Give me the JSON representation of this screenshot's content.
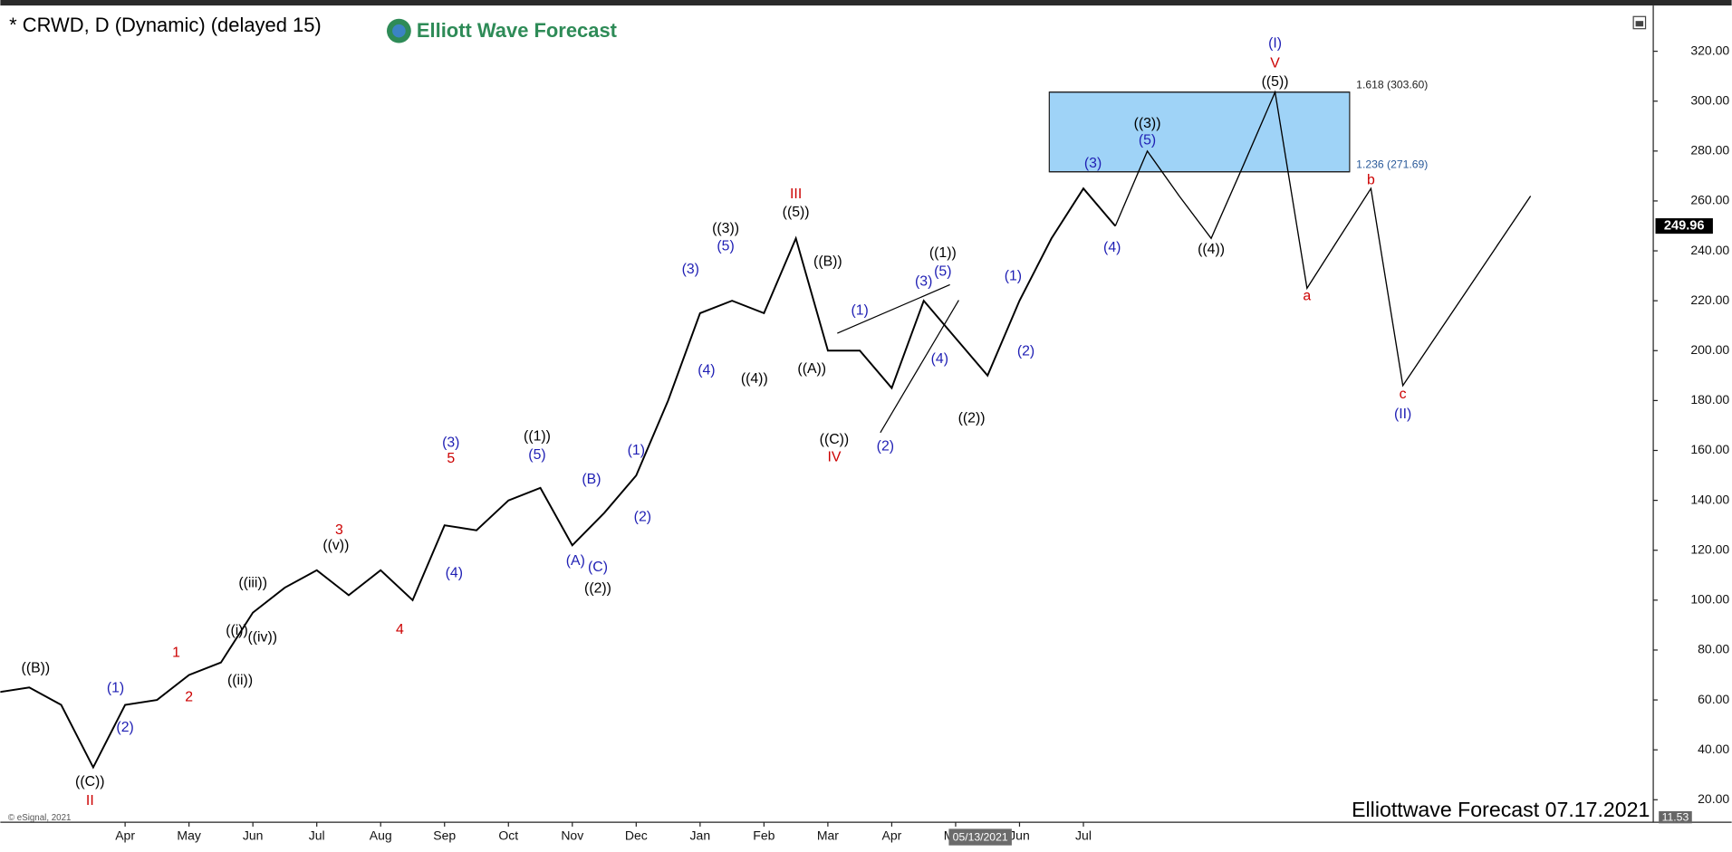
{
  "header": {
    "title": "* CRWD, D (Dynamic) (delayed 15)",
    "logo": "Elliott Wave Forecast"
  },
  "chart_data": {
    "type": "line",
    "categories": [
      null,
      null,
      null,
      null,
      "Apr",
      null,
      "May",
      null,
      "Jun",
      null,
      "Jul",
      null,
      "Aug",
      null,
      "Sep",
      null,
      "Oct",
      null,
      "Nov",
      null,
      "Dec",
      null,
      "Jan",
      null,
      "Feb",
      null,
      "Mar",
      null,
      "Apr",
      null,
      "May",
      null,
      "Jun",
      null,
      "Jul",
      null,
      null,
      null,
      null,
      null,
      null,
      null,
      null,
      null,
      null,
      null,
      null,
      null,
      null
    ],
    "series": [
      {
        "color": "#000000",
        "values": [
          63,
          65,
          58,
          33,
          58,
          60,
          70,
          75,
          95,
          105,
          112,
          102,
          112,
          100,
          130,
          128,
          140,
          145,
          122,
          135,
          150,
          180,
          215,
          220,
          215,
          245,
          200,
          200,
          185,
          220,
          205,
          190,
          220,
          245,
          265,
          249.96,
          null,
          null,
          null,
          null,
          null,
          null,
          null,
          null,
          null,
          null,
          null,
          null,
          null
        ]
      },
      {
        "color": "#000000",
        "values": [
          null,
          null,
          null,
          null,
          null,
          null,
          null,
          null,
          null,
          null,
          null,
          null,
          null,
          null,
          null,
          null,
          null,
          null,
          null,
          null,
          null,
          null,
          null,
          null,
          null,
          null,
          null,
          null,
          null,
          null,
          null,
          null,
          null,
          null,
          null,
          249.96,
          280,
          262,
          245,
          274,
          303.6,
          225,
          245,
          265,
          186,
          205,
          224,
          243,
          262
        ]
      }
    ],
    "ylim": [
      11,
      337
    ],
    "yticks": [
      {
        "value": 20,
        "label": "20.00"
      },
      {
        "value": 40,
        "label": "40.00"
      },
      {
        "value": 60,
        "label": "60.00"
      },
      {
        "value": 80,
        "label": "80.00"
      },
      {
        "value": 100,
        "label": "100.00"
      },
      {
        "value": 120,
        "label": "120.00"
      },
      {
        "value": 140,
        "label": "140.00"
      },
      {
        "value": 160,
        "label": "160.00"
      },
      {
        "value": 180,
        "label": "180.00"
      },
      {
        "value": 200,
        "label": "200.00"
      },
      {
        "value": 220,
        "label": "220.00"
      },
      {
        "value": 240,
        "label": "240.00"
      },
      {
        "value": 260,
        "label": "260.00"
      },
      {
        "value": 280,
        "label": "280.00"
      },
      {
        "value": 300,
        "label": "300.00"
      },
      {
        "value": 320,
        "label": "320.00"
      }
    ],
    "last_price": 249.96,
    "crosshair_label": "05/13/2021",
    "fib_zone": {
      "color": "#9fd3f7",
      "values": [
        303.6,
        271.69
      ],
      "labels": [
        "1.618 (303.60)",
        "1.236 (271.69)"
      ]
    },
    "annotations": [
      {
        "text": "((B))",
        "x": 1.2,
        "y": 72.7,
        "color": "#000000"
      },
      {
        "text": "((C))",
        "x": 2.9,
        "y": 27,
        "color": "#000000"
      },
      {
        "text": "II",
        "x": 2.9,
        "y": 19.5,
        "color": "#cc0000"
      },
      {
        "text": "(1)",
        "x": 3.7,
        "y": 64.7,
        "color": "#1f1fb4"
      },
      {
        "text": "(2)",
        "x": 4,
        "y": 48.8,
        "color": "#1f1fb4"
      },
      {
        "text": "1",
        "x": 5.6,
        "y": 78.8,
        "color": "#cc0000"
      },
      {
        "text": "2",
        "x": 6,
        "y": 61,
        "color": "#cc0000"
      },
      {
        "text": "((i))",
        "x": 7.5,
        "y": 87.7,
        "color": "#000000"
      },
      {
        "text": "((ii))",
        "x": 7.6,
        "y": 67.8,
        "color": "#000000"
      },
      {
        "text": "((iii))",
        "x": 8,
        "y": 106.7,
        "color": "#000000"
      },
      {
        "text": "((iv))",
        "x": 8.3,
        "y": 85,
        "color": "#000000"
      },
      {
        "text": "3",
        "x": 10.7,
        "y": 128,
        "color": "#cc0000"
      },
      {
        "text": "((v))",
        "x": 10.6,
        "y": 121.8,
        "color": "#000000"
      },
      {
        "text": "4",
        "x": 12.6,
        "y": 88,
        "color": "#cc0000"
      },
      {
        "text": "(3)",
        "x": 14.2,
        "y": 163,
        "color": "#1f1fb4"
      },
      {
        "text": "5",
        "x": 14.2,
        "y": 156.7,
        "color": "#cc0000"
      },
      {
        "text": "(4)",
        "x": 14.3,
        "y": 110.7,
        "color": "#1f1fb4"
      },
      {
        "text": "((1))",
        "x": 16.9,
        "y": 165.6,
        "color": "#000000"
      },
      {
        "text": "(5)",
        "x": 16.9,
        "y": 158,
        "color": "#1f1fb4"
      },
      {
        "text": "(A)",
        "x": 18.1,
        "y": 115.6,
        "color": "#1f1fb4"
      },
      {
        "text": "(B)",
        "x": 18.6,
        "y": 148.3,
        "color": "#1f1fb4"
      },
      {
        "text": "(C)",
        "x": 18.8,
        "y": 113,
        "color": "#1f1fb4"
      },
      {
        "text": "((2))",
        "x": 18.8,
        "y": 104.5,
        "color": "#000000"
      },
      {
        "text": "(1)",
        "x": 20,
        "y": 159.8,
        "color": "#1f1fb4"
      },
      {
        "text": "(2)",
        "x": 20.2,
        "y": 133.3,
        "color": "#1f1fb4"
      },
      {
        "text": "(3)",
        "x": 21.7,
        "y": 232.4,
        "color": "#1f1fb4"
      },
      {
        "text": "(4)",
        "x": 22.2,
        "y": 192,
        "color": "#1f1fb4"
      },
      {
        "text": "((3))",
        "x": 22.8,
        "y": 248.8,
        "color": "#000000"
      },
      {
        "text": "(5)",
        "x": 22.8,
        "y": 241.7,
        "color": "#1f1fb4"
      },
      {
        "text": "((4))",
        "x": 23.7,
        "y": 188.6,
        "color": "#000000"
      },
      {
        "text": "III",
        "x": 25,
        "y": 262.5,
        "color": "#cc0000"
      },
      {
        "text": "((5))",
        "x": 25,
        "y": 255.4,
        "color": "#000000"
      },
      {
        "text": "((B))",
        "x": 26,
        "y": 235.5,
        "color": "#000000"
      },
      {
        "text": "((A))",
        "x": 25.5,
        "y": 192.6,
        "color": "#000000"
      },
      {
        "text": "((C))",
        "x": 26.2,
        "y": 164.2,
        "color": "#000000"
      },
      {
        "text": "IV",
        "x": 26.2,
        "y": 157.2,
        "color": "#cc0000"
      },
      {
        "text": "(1)",
        "x": 27,
        "y": 216,
        "color": "#1f1fb4"
      },
      {
        "text": "(2)",
        "x": 27.8,
        "y": 161.6,
        "color": "#1f1fb4"
      },
      {
        "text": "(3)",
        "x": 29,
        "y": 227.5,
        "color": "#1f1fb4"
      },
      {
        "text": "(5)",
        "x": 29.6,
        "y": 231.5,
        "color": "#1f1fb4"
      },
      {
        "text": "((1))",
        "x": 29.6,
        "y": 239,
        "color": "#000000"
      },
      {
        "text": "(4)",
        "x": 29.5,
        "y": 196.5,
        "color": "#1f1fb4"
      },
      {
        "text": "((2))",
        "x": 30.5,
        "y": 172.7,
        "color": "#000000"
      },
      {
        "text": "(1)",
        "x": 31.8,
        "y": 229.7,
        "color": "#1f1fb4"
      },
      {
        "text": "(2)",
        "x": 32.2,
        "y": 199.6,
        "color": "#1f1fb4"
      },
      {
        "text": "(3)",
        "x": 34.3,
        "y": 274.9,
        "color": "#1f1fb4"
      },
      {
        "text": "(4)",
        "x": 34.9,
        "y": 241.2,
        "color": "#1f1fb4"
      },
      {
        "text": "((3))",
        "x": 36,
        "y": 290.8,
        "color": "#000000"
      },
      {
        "text": "(5)",
        "x": 36,
        "y": 284.2,
        "color": "#1f1fb4"
      },
      {
        "text": "((4))",
        "x": 38,
        "y": 240.4,
        "color": "#000000"
      },
      {
        "text": "((5))",
        "x": 40,
        "y": 307.6,
        "color": "#000000"
      },
      {
        "text": "V",
        "x": 40,
        "y": 315,
        "color": "#cc0000"
      },
      {
        "text": "(I)",
        "x": 40,
        "y": 323,
        "color": "#1f1fb4"
      },
      {
        "text": "a",
        "x": 41,
        "y": 221.8,
        "color": "#cc0000"
      },
      {
        "text": "b",
        "x": 43,
        "y": 268.2,
        "color": "#cc0000"
      },
      {
        "text": "c",
        "x": 44,
        "y": 182.4,
        "color": "#cc0000"
      },
      {
        "text": "(II)",
        "x": 44,
        "y": 174.4,
        "color": "#1f1fb4"
      }
    ]
  },
  "footer": {
    "watermark": "Elliottwave Forecast 07.17.2021",
    "copyright": "© eSignal, 2021",
    "indicator_value": "11.53"
  }
}
